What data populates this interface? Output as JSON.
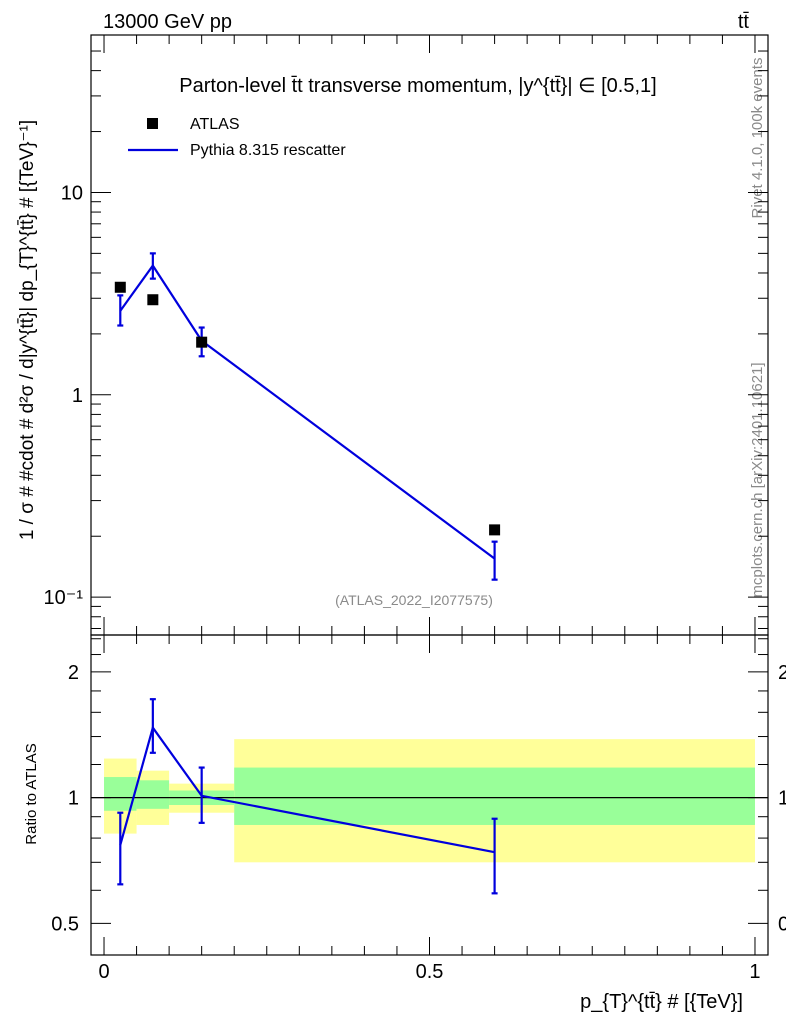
{
  "header": {
    "left": "13000 GeV pp",
    "right": "tt̄"
  },
  "side_labels": {
    "top": "Rivet 4.1.0,  100k events",
    "bottom": "mcplots.cern.ch [arXiv:2401.10621]"
  },
  "chart_data": [
    {
      "type": "scatter",
      "panel": "main",
      "title": "Parton-level t̄t transverse momentum, |y^{tt̄}| ∈ [0.5,1]",
      "ylabel": "1 / σ # #cdot # d²σ / d|y^{tt̄}| dp_{T}^{tt̄} # [{TeV}⁻¹]",
      "yscale": "log",
      "ylim": [
        0.065,
        60
      ],
      "xlim": [
        -0.02,
        1.02
      ],
      "y_ticks": [
        "10⁻¹",
        "1",
        "10"
      ],
      "watermark": "(ATLAS_2022_I2077575)",
      "legend": [
        {
          "label": "ATLAS",
          "marker": "square",
          "color": "#000000"
        },
        {
          "label": "Pythia 8.315 rescatter",
          "marker": "line",
          "color": "#0000dd"
        }
      ],
      "series": [
        {
          "name": "ATLAS",
          "x": [
            0.025,
            0.075,
            0.15,
            0.6
          ],
          "y": [
            3.4,
            2.95,
            1.82,
            0.215
          ],
          "xerr": [
            0.025,
            0.025,
            0.05,
            0.4
          ],
          "band_inner": [
            [
              0.93,
              1.12
            ],
            [
              0.94,
              1.1
            ],
            [
              0.96,
              1.04
            ],
            [
              0.86,
              1.18
            ]
          ],
          "band_outer": [
            [
              0.82,
              1.24
            ],
            [
              0.86,
              1.16
            ],
            [
              0.92,
              1.08
            ],
            [
              0.7,
              1.38
            ]
          ]
        },
        {
          "name": "Pythia 8.315 rescatter",
          "x": [
            0.025,
            0.075,
            0.15,
            0.6
          ],
          "y": [
            2.6,
            4.35,
            1.85,
            0.155
          ],
          "yerr_lo": [
            2.2,
            3.75,
            1.55,
            0.122
          ],
          "yerr_hi": [
            3.1,
            5.0,
            2.15,
            0.188
          ]
        }
      ]
    },
    {
      "type": "line",
      "panel": "ratio",
      "ylabel": "Ratio to ATLAS",
      "xlabel": "p_{T}^{tt̄} # [{TeV}]",
      "yscale": "log",
      "ylim": [
        0.42,
        2.45
      ],
      "xlim": [
        -0.02,
        1.02
      ],
      "x_ticks": [
        "0",
        "0.5",
        "1"
      ],
      "y_ticks": [
        "0.5",
        "1",
        "2"
      ],
      "series": [
        {
          "name": "Pythia 8.315 rescatter / ATLAS",
          "x": [
            0.025,
            0.075,
            0.15,
            0.6
          ],
          "y": [
            0.77,
            1.47,
            1.01,
            0.74
          ],
          "yerr_lo": [
            0.62,
            1.28,
            0.87,
            0.59
          ],
          "yerr_hi": [
            0.92,
            1.72,
            1.18,
            0.89
          ]
        }
      ]
    }
  ],
  "colors": {
    "band_inner": "#99ff99",
    "band_outer": "#ffff99",
    "mc": "#0000dd",
    "data": "#000000"
  }
}
